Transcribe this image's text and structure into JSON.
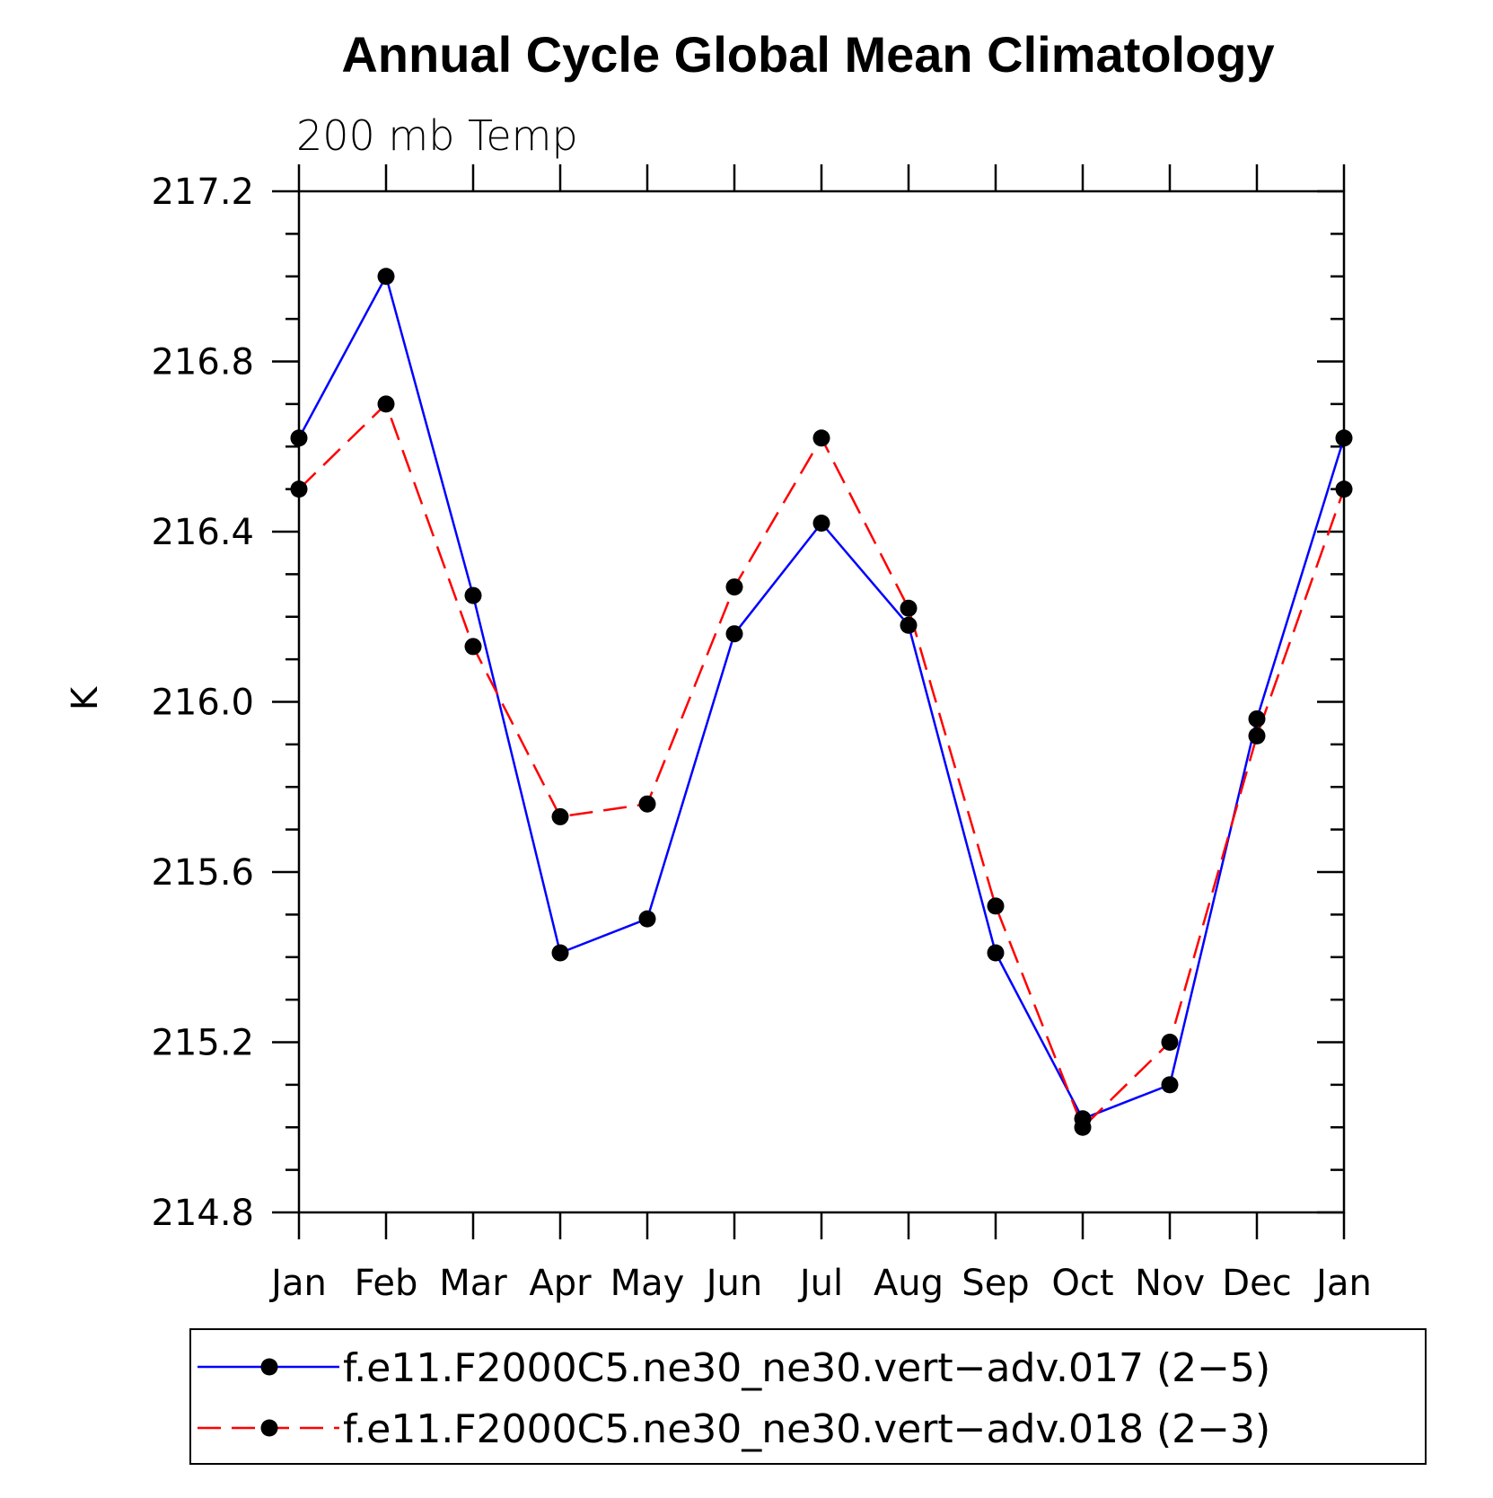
{
  "chart_data": {
    "type": "line",
    "title": "Annual Cycle Global Mean Climatology",
    "subtitle": "200 mb Temp",
    "xlabel": "",
    "ylabel": "K",
    "categories": [
      "Jan",
      "Feb",
      "Mar",
      "Apr",
      "May",
      "Jun",
      "Jul",
      "Aug",
      "Sep",
      "Oct",
      "Nov",
      "Dec",
      "Jan"
    ],
    "ylim": [
      214.8,
      217.2
    ],
    "yticks": [
      "214.8",
      "215.2",
      "215.6",
      "216.0",
      "216.4",
      "216.8",
      "217.2"
    ],
    "grid": false,
    "legend_position": "bottom",
    "series": [
      {
        "name": "f.e11.F2000C5.ne30_ne30.vert−adv.017 (2−5)",
        "color": "#0000ff",
        "style": "solid",
        "values": [
          216.62,
          217.0,
          216.25,
          215.41,
          215.49,
          216.16,
          216.42,
          216.18,
          215.41,
          215.02,
          215.1,
          215.96,
          216.62
        ]
      },
      {
        "name": "f.e11.F2000C5.ne30_ne30.vert−adv.018 (2−3)",
        "color": "#ff0000",
        "style": "dashed",
        "values": [
          216.5,
          216.7,
          216.13,
          215.73,
          215.76,
          216.27,
          216.62,
          216.22,
          215.52,
          215.0,
          215.2,
          215.92,
          216.5
        ]
      }
    ]
  }
}
